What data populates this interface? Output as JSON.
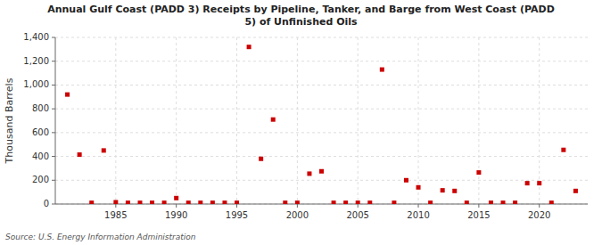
{
  "chart_data": {
    "type": "scatter",
    "title": "Annual Gulf Coast (PADD 3) Receipts by Pipeline, Tanker, and Barge from West Coast (PADD\n5) of Unfinished Oils",
    "y_label": "Thousand Barrels",
    "source": "Source: U.S. Energy Information Administration",
    "color": "#cc0000",
    "marker": "square",
    "grid": true,
    "x": [
      1981,
      1982,
      1983,
      1984,
      1985,
      1986,
      1987,
      1988,
      1989,
      1990,
      1991,
      1992,
      1993,
      1994,
      1995,
      1996,
      1997,
      1998,
      1999,
      2000,
      2001,
      2002,
      2003,
      2004,
      2005,
      2006,
      2007,
      2008,
      2009,
      2010,
      2011,
      2012,
      2013,
      2014,
      2015,
      2016,
      2017,
      2018,
      2019,
      2020,
      2021,
      2022,
      2023
    ],
    "values": [
      920,
      415,
      10,
      450,
      15,
      10,
      10,
      10,
      10,
      50,
      10,
      10,
      10,
      10,
      10,
      1320,
      380,
      710,
      10,
      10,
      255,
      275,
      10,
      10,
      10,
      10,
      1130,
      10,
      200,
      140,
      10,
      115,
      110,
      10,
      265,
      10,
      10,
      10,
      175,
      175,
      10,
      455,
      110
    ],
    "xlim": [
      1980,
      2024
    ],
    "xticks": [
      1985,
      1990,
      1995,
      2000,
      2005,
      2010,
      2015,
      2020
    ],
    "ylim": [
      0,
      1400
    ],
    "yticks": [
      0,
      200,
      400,
      600,
      800,
      {
        "value": 1000,
        "label": "1,000"
      },
      {
        "value": 1200,
        "label": "1,200"
      },
      {
        "value": 1400,
        "label": "1,400"
      }
    ]
  }
}
